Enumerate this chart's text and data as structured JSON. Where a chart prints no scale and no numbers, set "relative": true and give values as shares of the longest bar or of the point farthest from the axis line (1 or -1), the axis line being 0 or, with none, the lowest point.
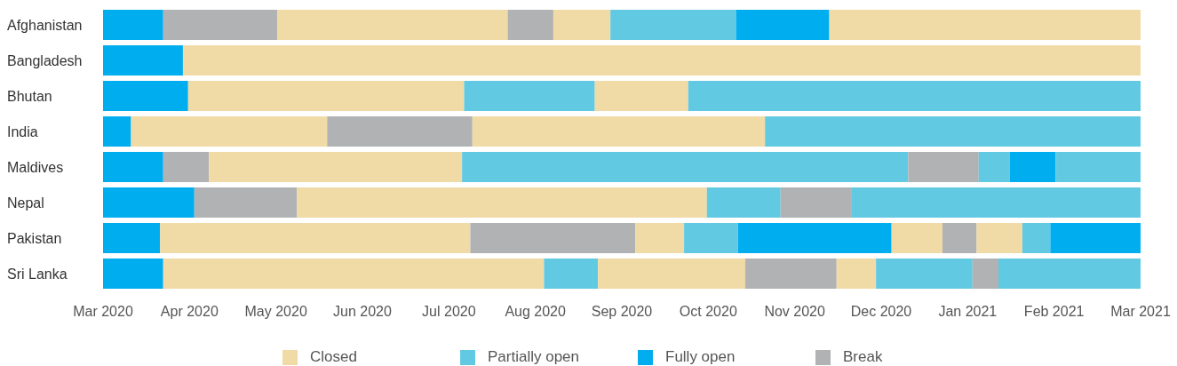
{
  "chart_data": {
    "type": "bar",
    "orientation": "horizontal",
    "stacked": true,
    "relative": true,
    "categories": [
      "Afghanistan",
      "Bangladesh",
      "Bhutan",
      "India",
      "Maldives",
      "Nepal",
      "Pakistan",
      "Sri Lanka"
    ],
    "annotations": [
      "Mar 2020",
      "Apr 2020",
      "May 2020",
      "Jun 2020",
      "Jul 2020",
      "Aug 2020",
      "Sep 2020",
      "Oct 2020",
      "Nov 2020",
      "Dec 2020",
      "Jan 2021",
      "Feb 2021",
      "Mar 2021"
    ],
    "legend": "bottom",
    "series": [
      {
        "values": [
          0.058,
          0.077,
          0.082,
          0.027,
          0.058,
          0.088,
          0.055,
          0.058
        ],
        "colors": [
          "#00adee",
          "#00adee",
          "#00adee",
          "#00adee",
          "#00adee",
          "#00adee",
          "#00adee",
          "#00adee"
        ]
      },
      {
        "values": [
          0.11,
          0.923,
          0.266,
          0.189,
          0.044,
          0.099,
          0.299,
          0.367
        ],
        "colors": [
          "#b0b2b3",
          "#f0dba6",
          "#f0dba6",
          "#f0dba6",
          "#b0b2b3",
          "#b0b2b3",
          "#f0dba6",
          "#f0dba6"
        ]
      },
      {
        "values": [
          0.222,
          null,
          0.126,
          0.14,
          0.244,
          0.395,
          0.159,
          0.052
        ],
        "colors": [
          "#f0dba6",
          null,
          "#62c9e2",
          "#b0b2b3",
          "#f0dba6",
          "#f0dba6",
          "#b0b2b3",
          "#62c9e2"
        ]
      },
      {
        "values": [
          0.044,
          null,
          0.09,
          0.282,
          0.43,
          0.071,
          0.047,
          0.142
        ],
        "colors": [
          "#b0b2b3",
          null,
          "#f0dba6",
          "#f0dba6",
          "#62c9e2",
          "#62c9e2",
          "#f0dba6",
          "#f0dba6"
        ]
      },
      {
        "values": [
          0.055,
          null,
          0.436,
          0.362,
          0.068,
          0.068,
          0.052,
          0.088
        ],
        "colors": [
          "#f0dba6",
          null,
          "#62c9e2",
          "#62c9e2",
          "#b0b2b3",
          "#b0b2b3",
          "#62c9e2",
          "#b0b2b3"
        ]
      },
      {
        "values": [
          0.121,
          null,
          null,
          null,
          0.03,
          0.279,
          0.148,
          0.038
        ],
        "colors": [
          "#62c9e2",
          null,
          null,
          null,
          "#62c9e2",
          "#62c9e2",
          "#00adee",
          "#f0dba6"
        ]
      },
      {
        "values": [
          0.09,
          null,
          null,
          null,
          0.044,
          null,
          0.049,
          0.093
        ],
        "colors": [
          "#00adee",
          null,
          null,
          null,
          "#00adee",
          null,
          "#f0dba6",
          "#62c9e2"
        ]
      },
      {
        "values": [
          0.3,
          null,
          null,
          null,
          0.082,
          null,
          0.033,
          0.025
        ],
        "colors": [
          "#f0dba6",
          null,
          null,
          null,
          "#62c9e2",
          null,
          "#b0b2b3",
          "#b0b2b3"
        ]
      },
      {
        "values": [
          null,
          null,
          null,
          null,
          null,
          null,
          0.044,
          0.137
        ],
        "colors": [
          null,
          null,
          null,
          null,
          null,
          null,
          "#f0dba6",
          "#62c9e2"
        ]
      },
      {
        "values": [
          null,
          null,
          null,
          null,
          null,
          null,
          0.027,
          null
        ],
        "colors": [
          null,
          null,
          null,
          null,
          null,
          null,
          "#62c9e2",
          null
        ]
      },
      {
        "values": [
          null,
          null,
          null,
          null,
          null,
          null,
          0.087,
          null
        ],
        "colors": [
          null,
          null,
          null,
          null,
          null,
          null,
          "#00adee",
          null
        ]
      },
      {
        "name": "Closed",
        "color": "#f0dba6",
        "values": [
          null,
          null,
          null,
          null,
          null,
          null,
          null,
          null
        ]
      },
      {
        "name": "Partially open",
        "color": "#62c9e2",
        "values": [
          null,
          null,
          null,
          null,
          null,
          null,
          null,
          null
        ]
      },
      {
        "name": "Fully open",
        "color": "#00adee",
        "values": [
          null,
          null,
          null,
          null,
          null,
          null,
          null,
          null
        ]
      },
      {
        "name": "Break",
        "color": "#b0b2b3",
        "values": [
          null,
          null,
          null,
          null,
          null,
          null,
          null,
          null
        ]
      }
    ]
  }
}
